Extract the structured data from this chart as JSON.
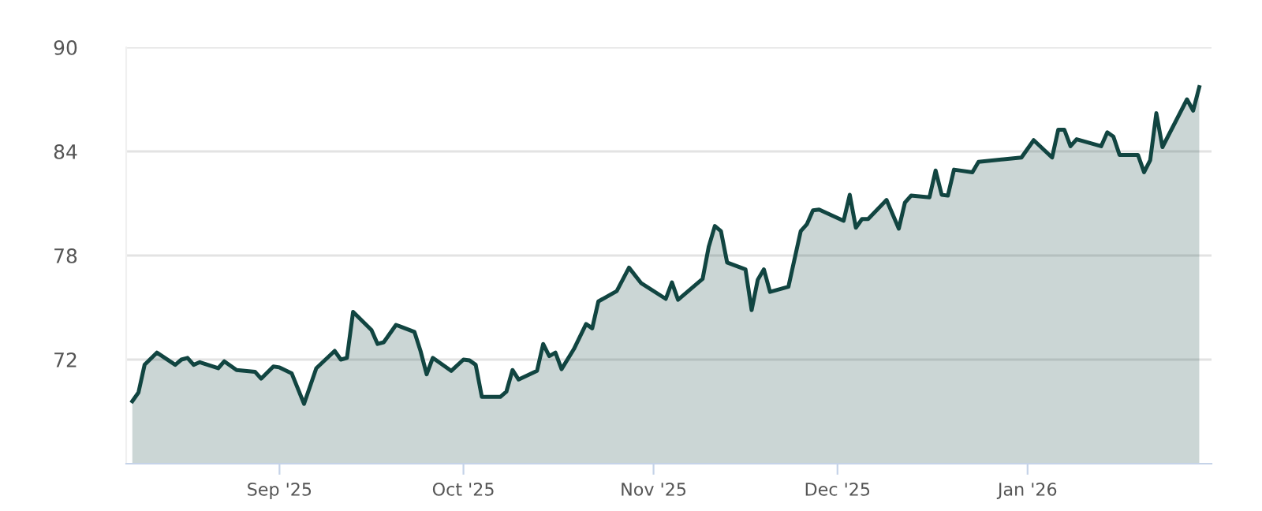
{
  "chart_data": {
    "type": "area",
    "x": [
      "2025-08-08",
      "2025-08-09",
      "2025-08-10",
      "2025-08-12",
      "2025-08-15",
      "2025-08-16",
      "2025-08-17",
      "2025-08-18",
      "2025-08-19",
      "2025-08-22",
      "2025-08-23",
      "2025-08-25",
      "2025-08-28",
      "2025-08-29",
      "2025-08-31",
      "2025-09-01",
      "2025-09-03",
      "2025-09-05",
      "2025-09-07",
      "2025-09-10",
      "2025-09-11",
      "2025-09-12",
      "2025-09-13",
      "2025-09-16",
      "2025-09-17",
      "2025-09-18",
      "2025-09-20",
      "2025-09-23",
      "2025-09-24",
      "2025-09-25",
      "2025-09-26",
      "2025-09-29",
      "2025-10-01",
      "2025-10-02",
      "2025-10-03",
      "2025-10-04",
      "2025-10-07",
      "2025-10-08",
      "2025-10-09",
      "2025-10-10",
      "2025-10-13",
      "2025-10-14",
      "2025-10-15",
      "2025-10-16",
      "2025-10-17",
      "2025-10-19",
      "2025-10-21",
      "2025-10-22",
      "2025-10-23",
      "2025-10-26",
      "2025-10-28",
      "2025-10-30",
      "2025-11-03",
      "2025-11-04",
      "2025-11-05",
      "2025-11-09",
      "2025-11-10",
      "2025-11-11",
      "2025-11-12",
      "2025-11-13",
      "2025-11-16",
      "2025-11-17",
      "2025-11-18",
      "2025-11-19",
      "2025-11-20",
      "2025-11-23",
      "2025-11-25",
      "2025-11-26",
      "2025-11-27",
      "2025-11-28",
      "2025-12-02",
      "2025-12-03",
      "2025-12-04",
      "2025-12-05",
      "2025-12-06",
      "2025-12-09",
      "2025-12-11",
      "2025-12-12",
      "2025-12-13",
      "2025-12-16",
      "2025-12-17",
      "2025-12-18",
      "2025-12-19",
      "2025-12-20",
      "2025-12-23",
      "2025-12-24",
      "2025-12-31",
      "2026-01-02",
      "2026-01-05",
      "2026-01-06",
      "2026-01-07",
      "2026-01-08",
      "2026-01-09",
      "2026-01-13",
      "2026-01-14",
      "2026-01-15",
      "2026-01-16",
      "2026-01-19",
      "2026-01-20",
      "2026-01-21",
      "2026-01-22",
      "2026-01-23",
      "2026-01-27",
      "2026-01-28",
      "2026-01-29"
    ],
    "series": [
      {
        "color": "#114541",
        "values": [
          69.6,
          70.1,
          71.7,
          72.4,
          71.7,
          72.0,
          72.1,
          71.7,
          71.85,
          71.5,
          71.9,
          71.4,
          71.3,
          70.9,
          71.6,
          71.55,
          71.2,
          69.45,
          71.5,
          72.5,
          72.0,
          72.1,
          74.75,
          73.7,
          72.9,
          73.0,
          74.0,
          73.6,
          72.5,
          71.15,
          72.1,
          71.35,
          72.0,
          71.95,
          71.7,
          69.85,
          69.85,
          70.15,
          71.4,
          70.85,
          71.35,
          72.9,
          72.2,
          72.4,
          71.45,
          72.6,
          74.05,
          73.8,
          75.35,
          75.95,
          77.3,
          76.4,
          75.5,
          76.45,
          75.45,
          76.65,
          78.5,
          79.7,
          79.4,
          77.6,
          77.2,
          74.85,
          76.6,
          77.2,
          75.9,
          76.2,
          79.4,
          79.8,
          80.6,
          80.65,
          80.0,
          81.5,
          79.6,
          80.1,
          80.1,
          81.2,
          79.55,
          81.05,
          81.45,
          81.35,
          82.9,
          81.5,
          81.45,
          82.95,
          82.8,
          83.4,
          83.65,
          84.65,
          83.65,
          85.25,
          85.25,
          84.3,
          84.7,
          84.3,
          85.1,
          84.85,
          83.8,
          83.8,
          82.8,
          83.5,
          86.2,
          84.25,
          87.0,
          86.35,
          87.7
        ]
      }
    ],
    "xlim": [
      "2025-08-07",
      "2026-01-31"
    ],
    "xticks": [
      {
        "value": "2025-09-01",
        "label": "Sep '25"
      },
      {
        "value": "2025-10-01",
        "label": "Oct '25"
      },
      {
        "value": "2025-11-01",
        "label": "Nov '25"
      },
      {
        "value": "2025-12-01",
        "label": "Dec '25"
      },
      {
        "value": "2026-01-01",
        "label": "Jan '26"
      }
    ],
    "ylim": [
      66,
      90
    ],
    "yticks": [
      72,
      78,
      84,
      90
    ],
    "grid": "y",
    "legend": false
  }
}
